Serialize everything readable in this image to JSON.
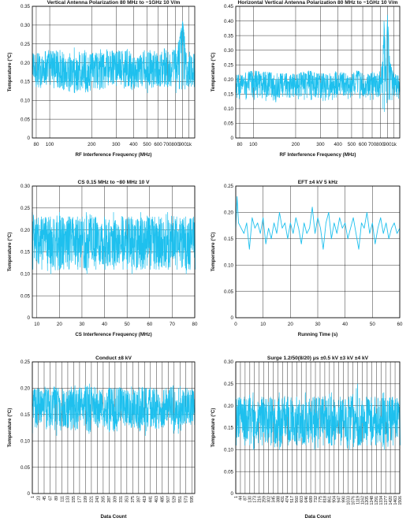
{
  "chart_data": [
    {
      "type": "line",
      "title": "Vertical Antenna Polarization 80 MHz to ~1GHz 10 V/m",
      "xlabel": "RF Interference Frequency (MHz)",
      "ylabel": "Temperature (°C)",
      "xscale": "log",
      "xlim": [
        75,
        1100
      ],
      "ylim": [
        0,
        0.35
      ],
      "yticks": [
        0,
        0.05,
        0.1,
        0.15,
        0.2,
        0.25,
        0.3,
        0.35
      ],
      "ytick_labels": [
        "0",
        "0.05",
        "0.10",
        "0.15",
        "0.20",
        "0.25",
        "0.30",
        "0.35"
      ],
      "xticks": [
        80,
        100,
        200,
        300,
        400,
        500,
        600,
        700,
        800,
        900,
        1000
      ],
      "xtick_labels": [
        "80",
        "100",
        "200",
        "300",
        "400",
        "500",
        "600",
        "700",
        "800",
        "900",
        "1k"
      ],
      "grid": "both",
      "series": [
        {
          "color": "#1ec0ee",
          "x": [
            80,
            100,
            150,
            200,
            250,
            300,
            350,
            400,
            450,
            500,
            550,
            600,
            650,
            700,
            750,
            800,
            850,
            880,
            900,
            930,
            960,
            1000,
            1050
          ],
          "y": [
            0.18,
            0.19,
            0.17,
            0.18,
            0.18,
            0.19,
            0.18,
            0.17,
            0.18,
            0.19,
            0.18,
            0.18,
            0.19,
            0.18,
            0.19,
            0.19,
            0.22,
            0.27,
            0.31,
            0.2,
            0.19,
            0.18,
            0.18
          ],
          "y_min": [
            0.13,
            0.13,
            0.12,
            0.12,
            0.13,
            0.13,
            0.12,
            0.13,
            0.13,
            0.12,
            0.12,
            0.13,
            0.13,
            0.12,
            0.13,
            0.12,
            0.13,
            0.13,
            0.14,
            0.13,
            0.13,
            0.13,
            0.13
          ],
          "y_max": [
            0.23,
            0.24,
            0.24,
            0.23,
            0.24,
            0.23,
            0.24,
            0.23,
            0.24,
            0.23,
            0.24,
            0.23,
            0.24,
            0.24,
            0.23,
            0.24,
            0.26,
            0.29,
            0.31,
            0.27,
            0.24,
            0.23,
            0.23
          ]
        }
      ]
    },
    {
      "type": "line",
      "title": "Horizontal Vertical Antenna Polarization 80 MHz to ~1GHz 10 V/m",
      "xlabel": "RF Interference Frequency (MHz)",
      "ylabel": "Temperature (°C)",
      "xscale": "log",
      "xlim": [
        75,
        1100
      ],
      "ylim": [
        0,
        0.45
      ],
      "yticks": [
        0,
        0.05,
        0.1,
        0.15,
        0.2,
        0.25,
        0.3,
        0.35,
        0.4,
        0.45
      ],
      "ytick_labels": [
        "0",
        "0.05",
        "0.10",
        "0.15",
        "0.20",
        "0.25",
        "0.30",
        "0.35",
        "0.40",
        "0.45"
      ],
      "xticks": [
        80,
        100,
        200,
        300,
        400,
        500,
        600,
        700,
        800,
        900,
        1000
      ],
      "xtick_labels": [
        "80",
        "100",
        "200",
        "300",
        "400",
        "500",
        "600",
        "700",
        "800",
        "900",
        "1k"
      ],
      "grid": "both",
      "series": [
        {
          "color": "#1ec0ee",
          "x": [
            80,
            100,
            150,
            200,
            250,
            300,
            350,
            400,
            450,
            500,
            550,
            600,
            650,
            700,
            750,
            800,
            830,
            850,
            880,
            900,
            930,
            960,
            1000,
            1050
          ],
          "y": [
            0.18,
            0.19,
            0.18,
            0.18,
            0.19,
            0.18,
            0.18,
            0.19,
            0.18,
            0.18,
            0.19,
            0.18,
            0.18,
            0.19,
            0.18,
            0.18,
            0.22,
            0.4,
            0.2,
            0.42,
            0.26,
            0.2,
            0.18,
            0.18
          ],
          "y_min": [
            0.13,
            0.13,
            0.12,
            0.13,
            0.13,
            0.12,
            0.13,
            0.13,
            0.12,
            0.13,
            0.13,
            0.12,
            0.13,
            0.13,
            0.12,
            0.12,
            0.1,
            0.09,
            0.12,
            0.13,
            0.13,
            0.13,
            0.13,
            0.12
          ],
          "y_max": [
            0.22,
            0.23,
            0.22,
            0.22,
            0.23,
            0.22,
            0.22,
            0.23,
            0.22,
            0.22,
            0.23,
            0.22,
            0.22,
            0.23,
            0.22,
            0.23,
            0.26,
            0.4,
            0.25,
            0.42,
            0.28,
            0.24,
            0.22,
            0.22
          ]
        }
      ]
    },
    {
      "type": "line",
      "title": "CS 0.15 MHz to ~80 MHz 10 V",
      "xlabel": "CS Interference Frequency (MHz)",
      "ylabel": "Temperature (°C)",
      "xlim": [
        8,
        80
      ],
      "ylim": [
        0,
        0.3
      ],
      "yticks": [
        0,
        0.05,
        0.1,
        0.15,
        0.2,
        0.25,
        0.3
      ],
      "ytick_labels": [
        "0",
        "0.05",
        "0.10",
        "0.15",
        "0.20",
        "0.25",
        "0.30"
      ],
      "xticks": [
        10,
        20,
        30,
        40,
        50,
        60,
        70,
        80
      ],
      "xtick_labels": [
        "10",
        "20",
        "30",
        "40",
        "50",
        "60",
        "70",
        "80"
      ],
      "grid": "both",
      "series": [
        {
          "color": "#1ec0ee",
          "x": [
            8,
            12,
            16,
            20,
            24,
            28,
            32,
            36,
            40,
            44,
            48,
            52,
            56,
            60,
            64,
            68,
            72,
            76,
            80
          ],
          "y": [
            0.17,
            0.18,
            0.17,
            0.17,
            0.18,
            0.17,
            0.17,
            0.18,
            0.17,
            0.17,
            0.18,
            0.17,
            0.17,
            0.18,
            0.17,
            0.17,
            0.18,
            0.17,
            0.17
          ],
          "y_min": [
            0.11,
            0.11,
            0.1,
            0.11,
            0.11,
            0.11,
            0.1,
            0.11,
            0.11,
            0.11,
            0.11,
            0.1,
            0.11,
            0.11,
            0.11,
            0.11,
            0.11,
            0.1,
            0.11
          ],
          "y_max": [
            0.24,
            0.23,
            0.23,
            0.24,
            0.23,
            0.23,
            0.24,
            0.23,
            0.23,
            0.24,
            0.23,
            0.23,
            0.24,
            0.23,
            0.23,
            0.24,
            0.23,
            0.23,
            0.23
          ]
        }
      ]
    },
    {
      "type": "line",
      "title": "EFT ±4 kV 5 kHz",
      "xlabel": "Running Time (s)",
      "ylabel": "Temperature (°C)",
      "xlim": [
        0,
        60
      ],
      "ylim": [
        0,
        0.25
      ],
      "yticks": [
        0,
        0.05,
        0.1,
        0.15,
        0.2,
        0.25
      ],
      "ytick_labels": [
        "0",
        "0.05",
        "0.10",
        "0.15",
        "0.20",
        "0.25"
      ],
      "xticks": [
        0,
        10,
        20,
        30,
        40,
        50,
        60
      ],
      "xtick_labels": [
        "0",
        "10",
        "20",
        "30",
        "40",
        "50",
        "60"
      ],
      "grid": "both",
      "series": [
        {
          "color": "#1ec0ee",
          "x": [
            0,
            0.5,
            1,
            2,
            3,
            4,
            5,
            6,
            7,
            8,
            9,
            10,
            11,
            12,
            13,
            14,
            15,
            16,
            17,
            18,
            19,
            20,
            21,
            22,
            23,
            24,
            25,
            26,
            27,
            28,
            29,
            30,
            31,
            32,
            33,
            34,
            35,
            36,
            37,
            38,
            39,
            40,
            41,
            42,
            43,
            44,
            45,
            46,
            47,
            48,
            49,
            50,
            51,
            52,
            53,
            54,
            55,
            56,
            57,
            58,
            59,
            60
          ],
          "y": [
            0.17,
            0.23,
            0.18,
            0.17,
            0.16,
            0.18,
            0.13,
            0.19,
            0.17,
            0.18,
            0.16,
            0.19,
            0.14,
            0.17,
            0.15,
            0.18,
            0.16,
            0.2,
            0.17,
            0.18,
            0.15,
            0.18,
            0.16,
            0.19,
            0.17,
            0.14,
            0.18,
            0.16,
            0.17,
            0.21,
            0.16,
            0.19,
            0.17,
            0.13,
            0.18,
            0.2,
            0.15,
            0.18,
            0.16,
            0.19,
            0.17,
            0.18,
            0.15,
            0.17,
            0.19,
            0.16,
            0.13,
            0.18,
            0.17,
            0.2,
            0.16,
            0.18,
            0.14,
            0.17,
            0.19,
            0.16,
            0.18,
            0.15,
            0.17,
            0.18,
            0.16,
            0.17
          ]
        }
      ]
    },
    {
      "type": "line",
      "title": "Conduct ±8 kV",
      "xlabel": "Data Count",
      "ylabel": "Temperature (°C)",
      "xlim": [
        1,
        606
      ],
      "ylim": [
        0,
        0.25
      ],
      "yticks": [
        0,
        0.05,
        0.1,
        0.15,
        0.2,
        0.25
      ],
      "ytick_labels": [
        "0",
        "0.05",
        "0.10",
        "0.15",
        "0.20",
        "0.25"
      ],
      "xticks": [
        1,
        23,
        45,
        67,
        89,
        111,
        133,
        155,
        177,
        199,
        221,
        243,
        265,
        287,
        309,
        331,
        353,
        375,
        397,
        419,
        441,
        463,
        485,
        507,
        529,
        551,
        573,
        595
      ],
      "xtick_labels": [
        "1",
        "23",
        "45",
        "67",
        "89",
        "111",
        "133",
        "155",
        "177",
        "199",
        "221",
        "243",
        "265",
        "287",
        "309",
        "331",
        "353",
        "375",
        "397",
        "419",
        "441",
        "463",
        "485",
        "507",
        "529",
        "551",
        "573",
        "595"
      ],
      "grid": "both",
      "series": [
        {
          "color": "#1ec0ee",
          "x": [
            1,
            30,
            60,
            90,
            120,
            150,
            180,
            210,
            240,
            270,
            300,
            330,
            360,
            390,
            420,
            450,
            480,
            510,
            540,
            570,
            606
          ],
          "y": [
            0.16,
            0.17,
            0.16,
            0.17,
            0.16,
            0.16,
            0.17,
            0.16,
            0.17,
            0.16,
            0.16,
            0.17,
            0.16,
            0.16,
            0.17,
            0.16,
            0.16,
            0.17,
            0.16,
            0.17,
            0.16
          ],
          "y_min": [
            0.11,
            0.12,
            0.12,
            0.11,
            0.12,
            0.12,
            0.12,
            0.11,
            0.12,
            0.12,
            0.11,
            0.12,
            0.12,
            0.12,
            0.11,
            0.12,
            0.12,
            0.12,
            0.11,
            0.12,
            0.12
          ],
          "y_max": [
            0.2,
            0.2,
            0.21,
            0.2,
            0.2,
            0.21,
            0.2,
            0.21,
            0.2,
            0.2,
            0.21,
            0.2,
            0.2,
            0.21,
            0.2,
            0.21,
            0.2,
            0.2,
            0.21,
            0.2,
            0.2
          ]
        }
      ]
    },
    {
      "type": "line",
      "title": "Surge 1.2/50(8/20) μs ±0.5 kV ±3 kV ±4 kV",
      "xlabel": "Data Count",
      "ylabel": "Temperature (°C)",
      "xlim": [
        1,
        1506
      ],
      "ylim": [
        0,
        0.3
      ],
      "yticks": [
        0,
        0.05,
        0.1,
        0.15,
        0.2,
        0.25,
        0.3
      ],
      "ytick_labels": [
        "0",
        "0.05",
        "0.10",
        "0.15",
        "0.20",
        "0.25",
        "0.30"
      ],
      "xticks": [
        1,
        44,
        87,
        130,
        173,
        216,
        259,
        302,
        345,
        388,
        431,
        474,
        517,
        560,
        603,
        646,
        689,
        732,
        775,
        818,
        861,
        904,
        947,
        990,
        1033,
        1076,
        1119,
        1162,
        1205,
        1248,
        1291,
        1334,
        1377,
        1420,
        1463,
        1506
      ],
      "xtick_labels": [
        "1",
        "44",
        "87",
        "130",
        "173",
        "216",
        "259",
        "302",
        "345",
        "388",
        "431",
        "474",
        "517",
        "560",
        "603",
        "646",
        "689",
        "732",
        "775",
        "818",
        "861",
        "904",
        "947",
        "990",
        "1033",
        "1076",
        "1119",
        "1162",
        "1205",
        "1248",
        "1291",
        "1334",
        "1377",
        "1420",
        "1463",
        "1506"
      ],
      "grid": "both",
      "series": [
        {
          "color": "#1ec0ee",
          "x": [
            1,
            80,
            160,
            240,
            320,
            400,
            480,
            560,
            640,
            720,
            800,
            880,
            960,
            1040,
            1120,
            1200,
            1280,
            1360,
            1440,
            1506
          ],
          "y": [
            0.17,
            0.17,
            0.16,
            0.17,
            0.17,
            0.16,
            0.17,
            0.17,
            0.16,
            0.17,
            0.17,
            0.16,
            0.17,
            0.17,
            0.16,
            0.17,
            0.17,
            0.16,
            0.17,
            0.17
          ],
          "y_min": [
            0.11,
            0.11,
            0.1,
            0.11,
            0.11,
            0.1,
            0.11,
            0.11,
            0.11,
            0.1,
            0.11,
            0.11,
            0.11,
            0.1,
            0.11,
            0.11,
            0.11,
            0.1,
            0.11,
            0.11
          ],
          "y_max": [
            0.22,
            0.22,
            0.23,
            0.22,
            0.22,
            0.23,
            0.22,
            0.22,
            0.23,
            0.22,
            0.22,
            0.23,
            0.22,
            0.22,
            0.25,
            0.22,
            0.22,
            0.23,
            0.22,
            0.22
          ]
        }
      ]
    }
  ]
}
